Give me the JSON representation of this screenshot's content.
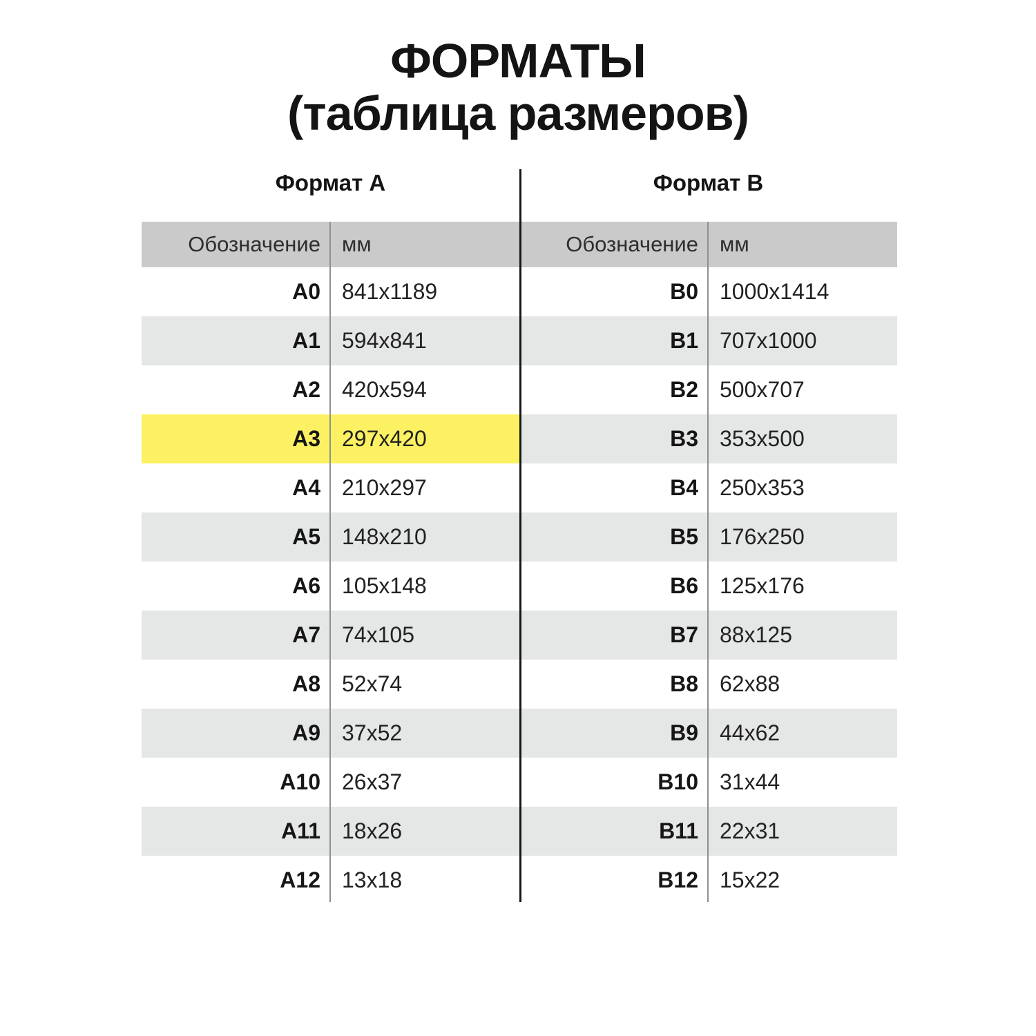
{
  "title": {
    "line1": "ФОРМАТЫ",
    "line2": "(таблица размеров)"
  },
  "tables": [
    {
      "heading": "Формат А",
      "columns": {
        "designation": "Обозначение",
        "size": "мм"
      },
      "rows": [
        {
          "designation": "A0",
          "size": "841x1189"
        },
        {
          "designation": "A1",
          "size": "594x841"
        },
        {
          "designation": "A2",
          "size": "420x594"
        },
        {
          "designation": "A3",
          "size": "297x420",
          "highlighted": true
        },
        {
          "designation": "A4",
          "size": "210x297"
        },
        {
          "designation": "A5",
          "size": "148x210"
        },
        {
          "designation": "A6",
          "size": "105x148"
        },
        {
          "designation": "A7",
          "size": "74x105"
        },
        {
          "designation": "A8",
          "size": "52x74"
        },
        {
          "designation": "A9",
          "size": "37x52"
        },
        {
          "designation": "A10",
          "size": "26x37"
        },
        {
          "designation": "A11",
          "size": "18x26"
        },
        {
          "designation": "A12",
          "size": "13x18"
        }
      ]
    },
    {
      "heading": "Формат В",
      "columns": {
        "designation": "Обозначение",
        "size": "мм"
      },
      "rows": [
        {
          "designation": "B0",
          "size": "1000x1414"
        },
        {
          "designation": "B1",
          "size": "707x1000"
        },
        {
          "designation": "B2",
          "size": "500x707"
        },
        {
          "designation": "B3",
          "size": "353x500"
        },
        {
          "designation": "B4",
          "size": "250x353"
        },
        {
          "designation": "B5",
          "size": "176x250"
        },
        {
          "designation": "B6",
          "size": "125x176"
        },
        {
          "designation": "B7",
          "size": "88x125"
        },
        {
          "designation": "B8",
          "size": "62x88"
        },
        {
          "designation": "B9",
          "size": "44x62"
        },
        {
          "designation": "B10",
          "size": "31x44"
        },
        {
          "designation": "B11",
          "size": "22x31"
        },
        {
          "designation": "B12",
          "size": "15x22"
        }
      ]
    }
  ],
  "colors": {
    "header_bg": "#cacaca",
    "row_alt_bg": "#e5e6e6",
    "highlight_bg": "#fcf162",
    "table_divider": "#161616",
    "column_rule": "#909090"
  }
}
